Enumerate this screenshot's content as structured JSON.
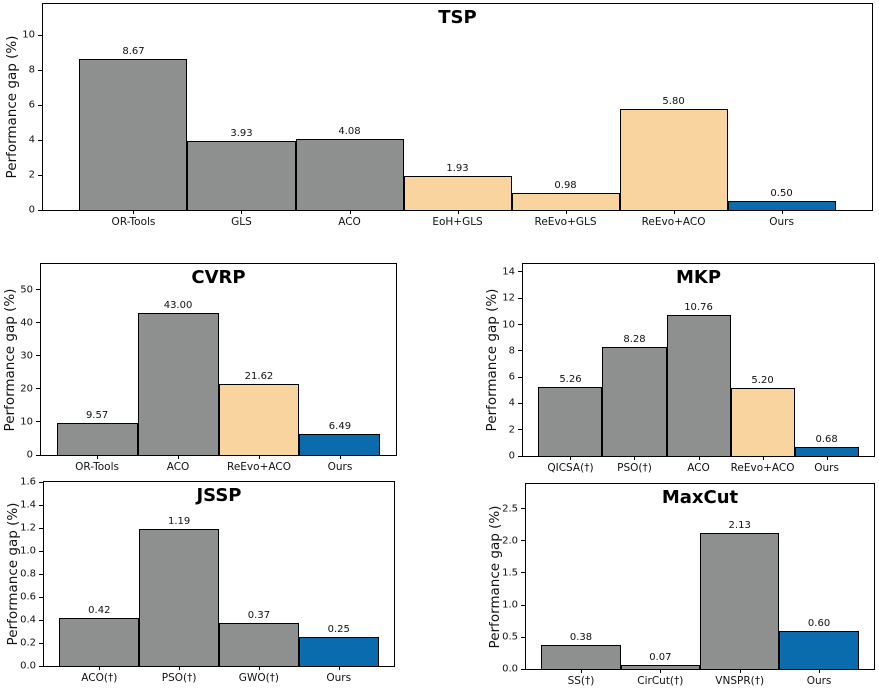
{
  "palette": {
    "gray": "#8e8f8f",
    "tan": "#f9d49f",
    "blue": "#0a6bad",
    "edge": "#000000",
    "background": "#ffffff"
  },
  "chart_data": [
    {
      "id": "tsp",
      "type": "bar",
      "title": "TSP",
      "xlabel": "",
      "ylabel": "Performance gap (%)",
      "categories": [
        "OR-Tools",
        "GLS",
        "ACO",
        "EoH+GLS",
        "ReEvo+GLS",
        "ReEvo+ACO",
        "Ours"
      ],
      "values": [
        8.67,
        3.93,
        4.08,
        1.93,
        0.98,
        5.8,
        0.5
      ],
      "value_labels": [
        "8.67",
        "3.93",
        "4.08",
        "1.93",
        "0.98",
        "5.80",
        "0.50"
      ],
      "bar_colors": [
        "gray",
        "gray",
        "gray",
        "tan",
        "tan",
        "tan",
        "blue"
      ],
      "yticks": [
        "0",
        "2",
        "4",
        "6",
        "8",
        "10"
      ],
      "ylim": [
        0,
        11.8
      ],
      "grid": false,
      "legend": null
    },
    {
      "id": "cvrp",
      "type": "bar",
      "title": "CVRP",
      "xlabel": "",
      "ylabel": "Performance gap (%)",
      "categories": [
        "OR-Tools",
        "ACO",
        "ReEvo+ACO",
        "Ours"
      ],
      "values": [
        9.57,
        43.0,
        21.62,
        6.49
      ],
      "value_labels": [
        "9.57",
        "43.00",
        "21.62",
        "6.49"
      ],
      "bar_colors": [
        "gray",
        "gray",
        "tan",
        "blue"
      ],
      "yticks": [
        "0",
        "10",
        "20",
        "30",
        "40",
        "50"
      ],
      "ylim": [
        0,
        57.8
      ],
      "grid": false,
      "legend": null
    },
    {
      "id": "mkp",
      "type": "bar",
      "title": "MKP",
      "xlabel": "",
      "ylabel": "Performance gap (%)",
      "categories": [
        "QICSA(†)",
        "PSO(†)",
        "ACO",
        "ReEvo+ACO",
        "Ours"
      ],
      "values": [
        5.26,
        8.28,
        10.76,
        5.2,
        0.68
      ],
      "value_labels": [
        "5.26",
        "8.28",
        "10.76",
        "5.20",
        "0.68"
      ],
      "bar_colors": [
        "gray",
        "gray",
        "gray",
        "tan",
        "blue"
      ],
      "yticks": [
        "0",
        "2",
        "4",
        "6",
        "8",
        "10",
        "12",
        "14"
      ],
      "ylim": [
        0,
        14.6
      ],
      "grid": false,
      "legend": null
    },
    {
      "id": "jssp",
      "type": "bar",
      "title": "JSSP",
      "xlabel": "",
      "ylabel": "Performance gap (%)",
      "categories": [
        "ACO(†)",
        "PSO(†)",
        "GWO(†)",
        "Ours"
      ],
      "values": [
        0.42,
        1.19,
        0.37,
        0.25
      ],
      "value_labels": [
        "0.42",
        "1.19",
        "0.37",
        "0.25"
      ],
      "bar_colors": [
        "gray",
        "gray",
        "gray",
        "blue"
      ],
      "yticks": [
        "0.0",
        "0.2",
        "0.4",
        "0.6",
        "0.8",
        "1.0",
        "1.2",
        "1.4",
        "1.6"
      ],
      "ylim": [
        0,
        1.6
      ],
      "grid": false,
      "legend": null
    },
    {
      "id": "maxcut",
      "type": "bar",
      "title": "MaxCut",
      "xlabel": "",
      "ylabel": "Performance gap (%)",
      "categories": [
        "SS(†)",
        "CirCut(†)",
        "VNSPR(†)",
        "Ours"
      ],
      "values": [
        0.38,
        0.07,
        2.13,
        0.6
      ],
      "value_labels": [
        "0.38",
        "0.07",
        "2.13",
        "0.60"
      ],
      "bar_colors": [
        "gray",
        "gray",
        "gray",
        "blue"
      ],
      "yticks": [
        "0.0",
        "0.5",
        "1.0",
        "1.5",
        "2.0",
        "2.5"
      ],
      "ylim": [
        0,
        2.89
      ],
      "grid": false,
      "legend": null
    }
  ]
}
